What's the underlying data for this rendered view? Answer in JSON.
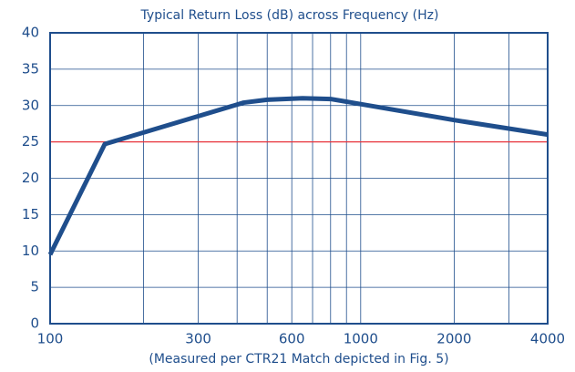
{
  "chart_data": {
    "type": "line",
    "title": "Typical Return Loss (dB) across Frequency (Hz)",
    "x_label": "(Measured per CTR21 Match depicted in Fig. 5)",
    "x_scale": "log",
    "series": [
      {
        "color": "#1f4e8c",
        "x": [
          100,
          150,
          420,
          500,
          650,
          800,
          1000,
          2000,
          4000
        ],
        "values": [
          9.5,
          24.7,
          30.4,
          30.8,
          31,
          30.9,
          30.2,
          28,
          26
        ]
      }
    ],
    "xlim": [
      100,
      4000
    ],
    "xticks": [
      100,
      300,
      600,
      1000,
      2000,
      4000
    ],
    "x_minor_gridlines": [
      200,
      400,
      500,
      700,
      800,
      900,
      3000
    ],
    "ylim": [
      0,
      40
    ],
    "yticks": [
      0,
      5,
      10,
      15,
      20,
      25,
      30,
      35,
      40
    ],
    "grid": true,
    "grid_color": "#1f4e8c",
    "reference_line": {
      "value": 25,
      "color": "#e8343c"
    }
  }
}
